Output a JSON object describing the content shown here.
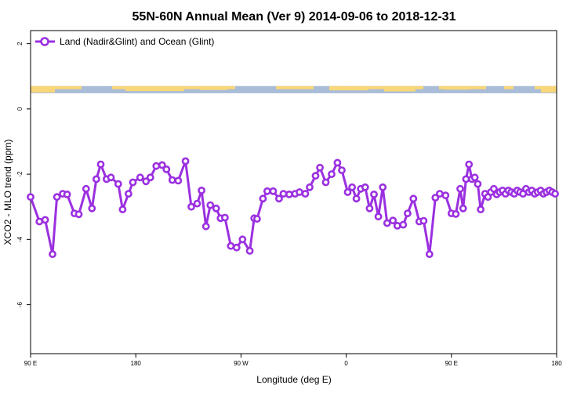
{
  "chart_data": {
    "type": "line",
    "title": "55N-60N Annual Mean (Ver 9)   2014-09-06 to 2018-12-31",
    "xlabel": "Longitude (deg E)",
    "ylabel": "XCO2 - MLO trend (ppm)",
    "xlim": [
      90,
      450
    ],
    "ylim": [
      -7.5,
      2.4
    ],
    "x_ticks": [
      {
        "value": 90,
        "label": "90 E"
      },
      {
        "value": 162,
        "label": "180"
      },
      {
        "value": 234,
        "label": "90 W"
      },
      {
        "value": 306,
        "label": "0"
      },
      {
        "value": 378,
        "label": "90 E"
      },
      {
        "value": 450,
        "label": "180"
      }
    ],
    "y_ticks": [
      {
        "value": 2,
        "label": "2"
      },
      {
        "value": 0,
        "label": "0"
      },
      {
        "value": -2,
        "label": "-2"
      },
      {
        "value": -4,
        "label": "-4"
      },
      {
        "value": -6,
        "label": "-6"
      }
    ],
    "legend_position": "top-left",
    "land_strip_range": [
      0.48,
      0.7
    ],
    "colors": {
      "series": "#9b30e0",
      "ocean": "#a9bcd8",
      "land": "#f7d77a"
    },
    "series": [
      {
        "name": "Land (Nadir&Glint) and Ocean (Glint)",
        "x": [
          90,
          96,
          100,
          105,
          108,
          112,
          115,
          120,
          123,
          128,
          132,
          135,
          138,
          142,
          145,
          150,
          153,
          157,
          160,
          165,
          169,
          172,
          176,
          180,
          183,
          187,
          191,
          196,
          200,
          204,
          207,
          210,
          213,
          217,
          220,
          223,
          227,
          231,
          235,
          240,
          243,
          245,
          249,
          252,
          256,
          260,
          263,
          267,
          271,
          274,
          278,
          281,
          285,
          288,
          292,
          296,
          300,
          303,
          307,
          310,
          313,
          316,
          319,
          322,
          325,
          328,
          331,
          334,
          338,
          341,
          345,
          348,
          352,
          356,
          359,
          363,
          367,
          370,
          374,
          378,
          381,
          384,
          386,
          388,
          390,
          392,
          394,
          396,
          398,
          401,
          403,
          405,
          407,
          409,
          411,
          413,
          415,
          417,
          419,
          421,
          423,
          425,
          427,
          429,
          431,
          433,
          435,
          437,
          439,
          441,
          443,
          445,
          447,
          449
        ],
        "values": [
          -2.7,
          -3.45,
          -3.4,
          -4.45,
          -2.7,
          -2.6,
          -2.62,
          -3.2,
          -3.23,
          -2.45,
          -3.05,
          -2.15,
          -1.7,
          -2.15,
          -2.1,
          -2.3,
          -3.08,
          -2.6,
          -2.25,
          -2.1,
          -2.22,
          -2.1,
          -1.75,
          -1.72,
          -1.85,
          -2.18,
          -2.2,
          -1.6,
          -3.0,
          -2.9,
          -2.5,
          -3.6,
          -2.95,
          -3.05,
          -3.35,
          -3.33,
          -4.2,
          -4.25,
          -4.0,
          -4.35,
          -3.35,
          -3.37,
          -2.75,
          -2.52,
          -2.52,
          -2.75,
          -2.6,
          -2.62,
          -2.6,
          -2.55,
          -2.6,
          -2.4,
          -2.05,
          -1.8,
          -2.25,
          -2.0,
          -1.65,
          -1.88,
          -2.55,
          -2.4,
          -2.75,
          -2.45,
          -2.4,
          -3.05,
          -2.62,
          -3.3,
          -2.4,
          -3.5,
          -3.42,
          -3.58,
          -3.55,
          -3.2,
          -2.75,
          -3.45,
          -3.43,
          -4.45,
          -2.72,
          -2.6,
          -2.65,
          -3.2,
          -3.22,
          -2.45,
          -3.05,
          -2.15,
          -1.7,
          -2.15,
          -2.1,
          -2.3,
          -3.08,
          -2.6,
          -2.7,
          -2.55,
          -2.45,
          -2.62,
          -2.55,
          -2.5,
          -2.6,
          -2.5,
          -2.55,
          -2.6,
          -2.5,
          -2.55,
          -2.6,
          -2.45,
          -2.55,
          -2.5,
          -2.6,
          -2.55,
          -2.5,
          -2.6,
          -2.55,
          -2.5,
          -2.55,
          -2.6
        ]
      }
    ]
  }
}
